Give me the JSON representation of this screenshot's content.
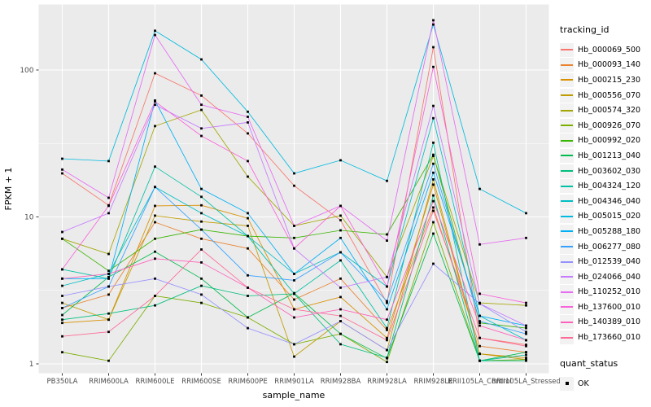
{
  "chart_data": {
    "type": "line",
    "title": "",
    "xlabel": "sample_name",
    "ylabel": "FPKM + 1",
    "y_scale": "log10",
    "ylim": [
      1,
      250
    ],
    "y_ticks": [
      1,
      10,
      100
    ],
    "grid": "major-and-minor-white-on-gray",
    "legend_position": "right",
    "legend_title": "tracking_id",
    "point_shape": "small-black-square",
    "categories": [
      "PB350LA",
      "RRIM600LA",
      "RRIM600LE",
      "RRIM600SE",
      "RRIM600PE",
      "RRIM901LA",
      "RRIM928BA",
      "RRIM928LA",
      "RRIM928LE",
      "RRII105LA_Control",
      "RRII105LA_Stressed"
    ],
    "series": [
      {
        "name": "Hb_000069_500",
        "color": "#F8766D",
        "values": [
          19.8,
          12,
          95,
          67,
          37,
          16.3,
          9.5,
          2.6,
          143,
          1.5,
          1.35
        ]
      },
      {
        "name": "Hb_000093_140",
        "color": "#EA8331",
        "values": [
          2.4,
          2.96,
          9.2,
          7.1,
          6.1,
          2.74,
          3.8,
          1.7,
          11.6,
          1.32,
          1.2
        ]
      },
      {
        "name": "Hb_000215_230",
        "color": "#D89000",
        "values": [
          1.9,
          2.0,
          11.9,
          12,
          9.8,
          2.35,
          2.85,
          1.5,
          16.6,
          1.17,
          1.1
        ]
      },
      {
        "name": "Hb_000556_070",
        "color": "#C09B00",
        "values": [
          2.6,
          2.0,
          10.2,
          9.3,
          8.7,
          1.12,
          1.95,
          1.24,
          18,
          1.17,
          1.07
        ]
      },
      {
        "name": "Hb_000574_320",
        "color": "#A3A500",
        "values": [
          7.1,
          5.6,
          41.5,
          53.5,
          18.8,
          8.7,
          10.2,
          3.9,
          26,
          2.6,
          2.5
        ]
      },
      {
        "name": "Hb_000926_070",
        "color": "#7CAE00",
        "values": [
          1.2,
          1.05,
          2.9,
          2.6,
          2.07,
          1.36,
          1.6,
          1.03,
          9.2,
          1.05,
          1.07
        ]
      },
      {
        "name": "Hb_000992_020",
        "color": "#39B600",
        "values": [
          7.1,
          4.3,
          7.1,
          8.2,
          7.4,
          7.2,
          8.1,
          7.6,
          26.5,
          1.9,
          1.75
        ]
      },
      {
        "name": "Hb_001213_040",
        "color": "#00BB4E",
        "values": [
          2.15,
          3.9,
          5.8,
          3.8,
          2.07,
          3.03,
          1.6,
          1.09,
          7.7,
          1.05,
          1.2
        ]
      },
      {
        "name": "Hb_003602_030",
        "color": "#00BF7D",
        "values": [
          2.0,
          2.2,
          2.5,
          3.4,
          2.9,
          3.0,
          1.36,
          1.1,
          14,
          1.05,
          1.05
        ]
      },
      {
        "name": "Hb_004324_120",
        "color": "#00C1A3",
        "values": [
          4.4,
          3.8,
          22,
          13.7,
          7.4,
          3.0,
          5.06,
          1.75,
          32,
          1.05,
          1.15
        ]
      },
      {
        "name": "Hb_004346_040",
        "color": "#00BFC4",
        "values": [
          3.4,
          4.1,
          16,
          10.6,
          7.4,
          4.1,
          5.75,
          3.36,
          47,
          2.12,
          1.45
        ]
      },
      {
        "name": "Hb_005015_020",
        "color": "#00BAE0",
        "values": [
          24.9,
          24,
          185,
          118,
          52,
          19.8,
          24.3,
          17.6,
          204,
          15.5,
          10.6
        ]
      },
      {
        "name": "Hb_005288_180",
        "color": "#00B0F6",
        "values": [
          3.8,
          3.8,
          62,
          15.5,
          10.6,
          4.1,
          7.2,
          2.35,
          20,
          2.12,
          1.82
        ]
      },
      {
        "name": "Hb_006277_080",
        "color": "#35A2FF",
        "values": [
          2.4,
          3.36,
          16,
          8.2,
          4.0,
          3.7,
          5.75,
          2.67,
          23,
          1.95,
          1.6
        ]
      },
      {
        "name": "Hb_012539_040",
        "color": "#9590FF",
        "values": [
          2.9,
          3.36,
          3.8,
          2.96,
          1.75,
          1.36,
          1.95,
          1.24,
          4.8,
          2.57,
          1.65
        ]
      },
      {
        "name": "Hb_024066_040",
        "color": "#C77CFF",
        "values": [
          7.9,
          10.6,
          58,
          40,
          44,
          6.1,
          3.3,
          3.9,
          57,
          2.57,
          1.82
        ]
      },
      {
        "name": "Hb_110252_010",
        "color": "#E76BF3",
        "values": [
          21,
          13.5,
          173,
          58,
          48,
          8.7,
          11.9,
          6.9,
          218,
          6.5,
          7.2
        ]
      },
      {
        "name": "Hb_137600_010",
        "color": "#FA62DB",
        "values": [
          4.4,
          11.9,
          61,
          35.6,
          24,
          6.1,
          11.9,
          3.36,
          105,
          3.0,
          2.6
        ]
      },
      {
        "name": "Hb_140389_010",
        "color": "#FF62BC",
        "values": [
          3.8,
          4.1,
          5.2,
          4.9,
          3.3,
          2.07,
          2.35,
          2.0,
          12.8,
          1.82,
          1.45
        ]
      },
      {
        "name": "Hb_173660_010",
        "color": "#FF6A98",
        "values": [
          1.54,
          1.65,
          2.9,
          6.0,
          3.3,
          2.35,
          2.12,
          1.45,
          11,
          1.5,
          1.32
        ]
      }
    ]
  },
  "quant_legend": {
    "title": "quant_status",
    "label": "OK"
  }
}
